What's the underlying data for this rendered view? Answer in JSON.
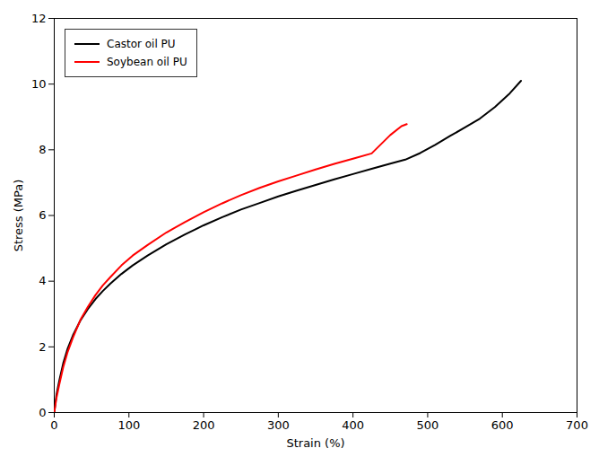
{
  "chart_data": {
    "type": "line",
    "xlabel": "Strain (%)",
    "ylabel": "Stress (MPa)",
    "series": [
      {
        "name": "Castor oil PU",
        "color": "#000000",
        "x": [
          0,
          3,
          7,
          12,
          18,
          25,
          35,
          45,
          55,
          65,
          75,
          90,
          105,
          125,
          150,
          175,
          200,
          225,
          250,
          275,
          300,
          325,
          350,
          375,
          400,
          425,
          450,
          470,
          490,
          510,
          530,
          550,
          570,
          590,
          610,
          625
        ],
        "values": [
          0,
          0.55,
          1.0,
          1.5,
          1.95,
          2.35,
          2.8,
          3.15,
          3.45,
          3.7,
          3.92,
          4.22,
          4.48,
          4.78,
          5.12,
          5.42,
          5.7,
          5.95,
          6.18,
          6.38,
          6.58,
          6.76,
          6.93,
          7.1,
          7.26,
          7.42,
          7.58,
          7.7,
          7.9,
          8.15,
          8.42,
          8.68,
          8.95,
          9.3,
          9.72,
          10.1
        ]
      },
      {
        "name": "Soybean oil PU",
        "color": "#ff0000",
        "x": [
          0,
          3,
          7,
          12,
          18,
          25,
          35,
          45,
          55,
          65,
          75,
          90,
          105,
          125,
          150,
          175,
          200,
          225,
          250,
          275,
          300,
          325,
          350,
          375,
          400,
          425,
          450,
          465,
          472
        ],
        "values": [
          0,
          0.45,
          0.88,
          1.38,
          1.85,
          2.28,
          2.82,
          3.22,
          3.57,
          3.87,
          4.12,
          4.48,
          4.78,
          5.1,
          5.48,
          5.8,
          6.1,
          6.37,
          6.62,
          6.84,
          7.04,
          7.22,
          7.4,
          7.57,
          7.73,
          7.89,
          8.45,
          8.72,
          8.78
        ]
      }
    ],
    "xlim": [
      0,
      700
    ],
    "ylim": [
      0,
      12
    ],
    "xticks": [
      0,
      100,
      200,
      300,
      400,
      500,
      600,
      700
    ],
    "yticks": [
      0,
      2,
      4,
      6,
      8,
      10,
      12
    ],
    "grid": false,
    "legend": "upper left"
  }
}
